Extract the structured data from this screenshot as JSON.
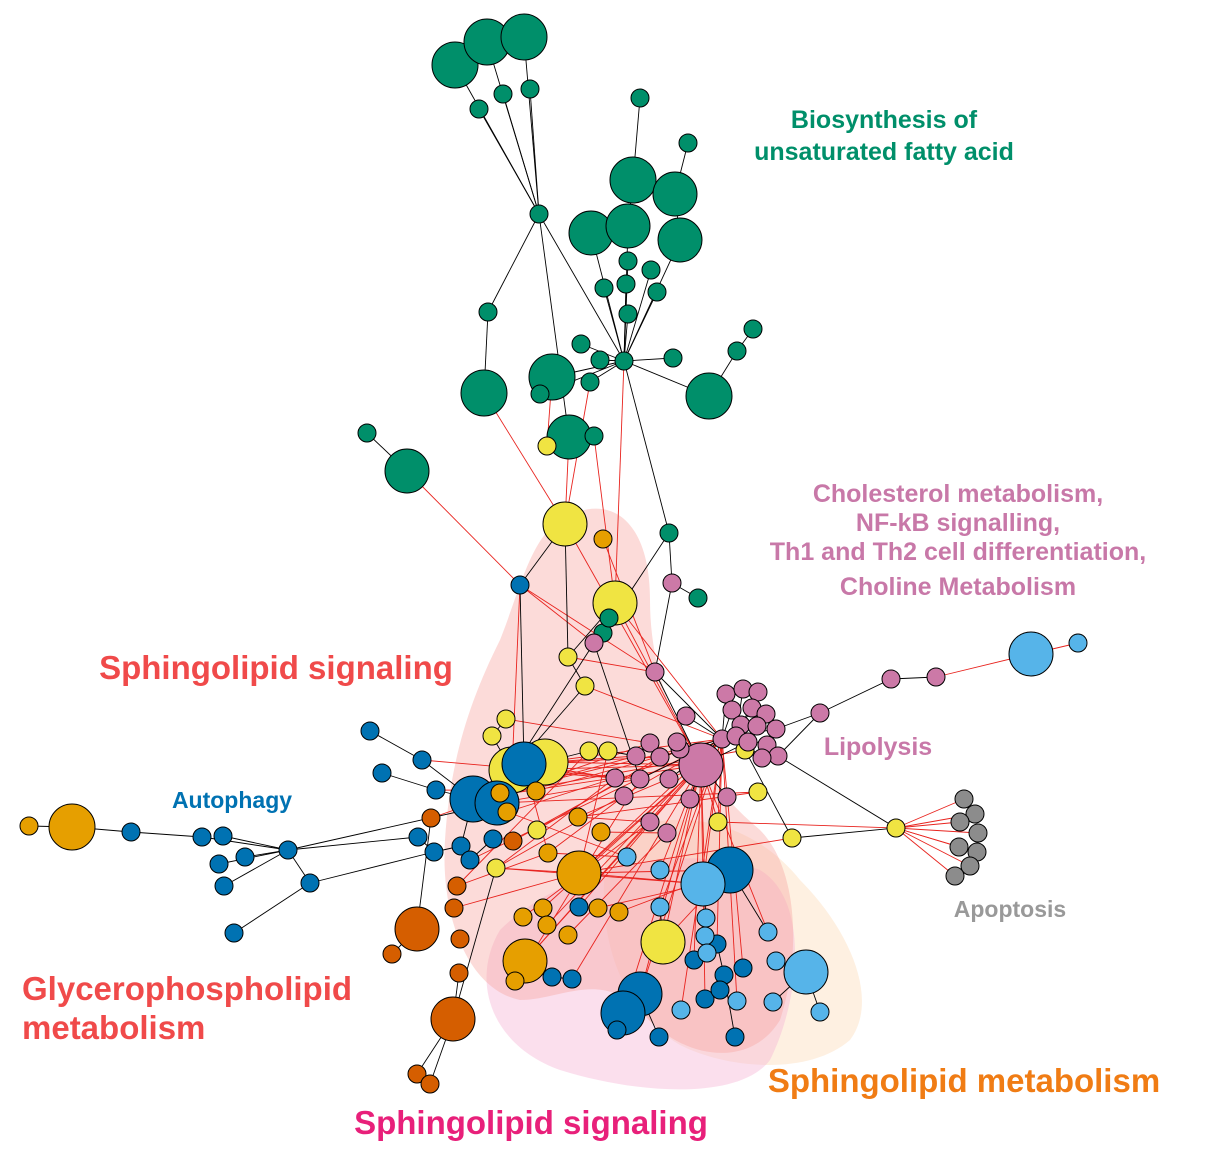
{
  "labels": {
    "biosynthesis": [
      "Biosynthesis of",
      "unsaturated fatty acid"
    ],
    "cholesterol": [
      "Cholesterol metabolism,",
      "NF-kB signalling,",
      "Th1 and Th2 cell differentiation,",
      "Choline Metabolism"
    ],
    "sphingolipid_signaling_top": "Sphingolipid signaling",
    "lipolysis": "Lipolysis",
    "autophagy": "Autophagy",
    "apoptosis": "Apoptosis",
    "glycerophospholipid": [
      "Glycerophospholipid",
      "metabolism"
    ],
    "sphingolipid_metabolism": "Sphingolipid metabolism",
    "sphingolipid_signaling_bottom": "Sphingolipid signaling"
  },
  "colors": {
    "green": "#008f6a",
    "pink": "#cc79a7",
    "yellow": "#f0e442",
    "blue": "#0072b2",
    "skyblue": "#56b4e9",
    "orange": "#e69f00",
    "vermilion": "#d55e00",
    "grey": "#8c8c8c",
    "red_label": "#f04a4a",
    "orange_label": "#f07c14",
    "magenta_label": "#e8207a",
    "pink_label": "#c878a8",
    "grey_label": "#999999",
    "edge_red": "#e8231e",
    "edge_black": "#000000"
  }
}
